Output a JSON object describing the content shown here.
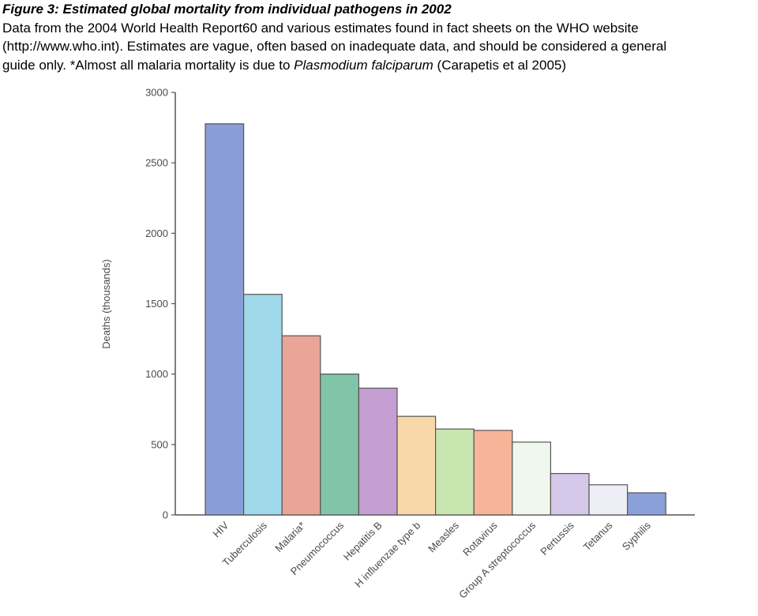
{
  "caption": {
    "title": "Figure 3: Estimated global mortality from individual pathogens in 2002",
    "line1": "Data from the 2004 World Health Report60 and various estimates found in fact sheets on the WHO website",
    "line2": "(http://www.who.int). Estimates are vague, often based on inadequate data, and should be considered a general",
    "line3_prefix": "guide only. *Almost all malaria mortality is due to ",
    "line3_species": "Plasmodium falciparum",
    "line3_suffix": " (Carapetis et al 2005)"
  },
  "chart_data": {
    "type": "bar",
    "ylabel": "Deaths (thousands)",
    "xlabel": "",
    "ylim": [
      0,
      3000
    ],
    "yticks": [
      0,
      500,
      1000,
      1500,
      2000,
      2500,
      3000
    ],
    "ytick_labels": [
      "0",
      "500",
      "1000",
      "1500",
      "2000",
      "2500",
      "3000"
    ],
    "grid": false,
    "categories": [
      "HIV",
      "Tuberculosis",
      "Malaria*",
      "Pneumococcus",
      "Hepatitis B",
      "H influenzae type b",
      "Measles",
      "Rotavirus",
      "Group A streptococcus",
      "Pertussis",
      "Tetanus",
      "Syphilis"
    ],
    "values": [
      2777,
      1566,
      1272,
      1000,
      900,
      700,
      610,
      600,
      517,
      294,
      214,
      157
    ],
    "colors": [
      "#8a9dd6",
      "#9fd8e8",
      "#e8a598",
      "#82c4a8",
      "#c59ed2",
      "#f8d8a8",
      "#c8e6b0",
      "#f8b498",
      "#f0f7ec",
      "#d6c8e8",
      "#eeeef7",
      "#8aa0d8"
    ],
    "axis_color": "#555555",
    "bar_stroke": "#555555"
  }
}
